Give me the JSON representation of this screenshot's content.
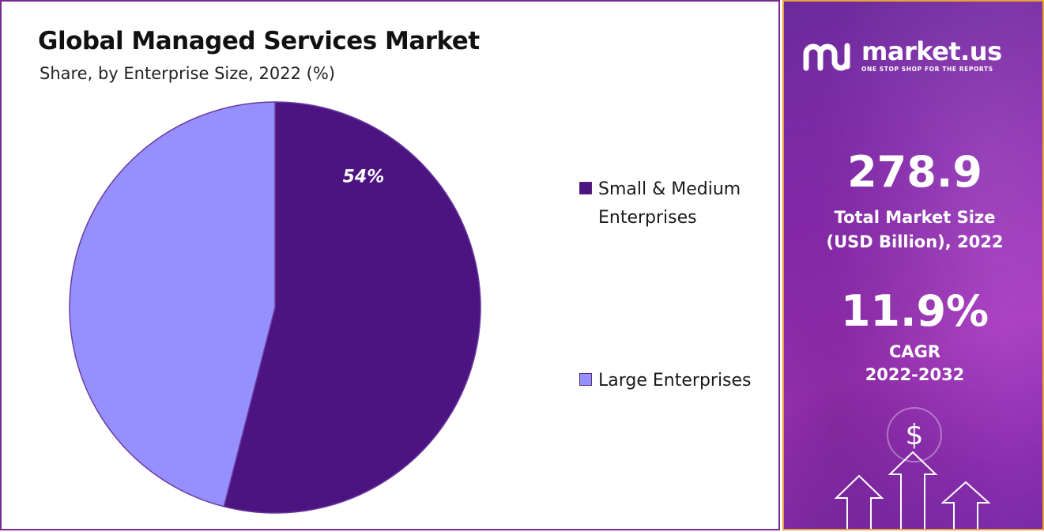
{
  "chart_data": {
    "type": "pie",
    "title": "Global Managed Services Market",
    "subtitle": "Share, by Enterprise Size, 2022 (%)",
    "categories": [
      "Small & Medium Enterprises",
      "Large Enterprises"
    ],
    "values": [
      54,
      46
    ],
    "data_labels": [
      "54%",
      ""
    ],
    "legend_position": "right",
    "colors": [
      "#4b1480",
      "#9690ff"
    ]
  },
  "legend": {
    "items": [
      {
        "label_line1": "Small & Medium",
        "label_line2": "Enterprises"
      },
      {
        "label_line1": "Large Enterprises"
      }
    ]
  },
  "sidebar": {
    "brand_name": "market.us",
    "brand_tagline": "ONE STOP SHOP FOR THE REPORTS",
    "market_size_value": "278.9",
    "market_size_label_line1": "Total Market Size",
    "market_size_label_line2": "(USD Billion), 2022",
    "cagr_value": "11.9%",
    "cagr_label_line1": "CAGR",
    "cagr_label_line2": "2022-2032",
    "dollar_symbol": "$"
  }
}
